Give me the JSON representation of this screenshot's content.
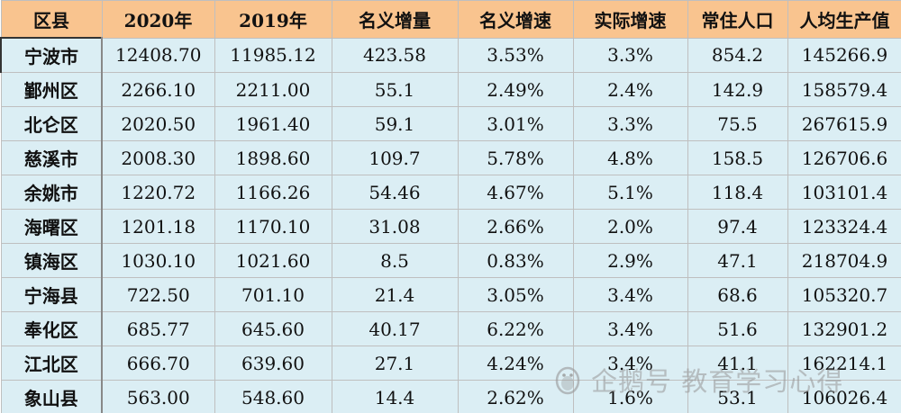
{
  "table": {
    "headers": [
      "区县",
      "2020年",
      "2019年",
      "名义增量",
      "名义增速",
      "实际增速",
      "常住人口",
      "人均生产值"
    ],
    "rows": [
      [
        "宁波市",
        "12408.70",
        "11985.12",
        "423.58",
        "3.53%",
        "3.3%",
        "854.2",
        "145266.9"
      ],
      [
        "鄞州区",
        "2266.10",
        "2211.00",
        "55.1",
        "2.49%",
        "2.4%",
        "142.9",
        "158579.4"
      ],
      [
        "北仑区",
        "2020.50",
        "1961.40",
        "59.1",
        "3.01%",
        "3.3%",
        "75.5",
        "267615.9"
      ],
      [
        "慈溪市",
        "2008.30",
        "1898.60",
        "109.7",
        "5.78%",
        "4.8%",
        "158.5",
        "126706.6"
      ],
      [
        "余姚市",
        "1220.72",
        "1166.26",
        "54.46",
        "4.67%",
        "5.1%",
        "118.4",
        "103101.4"
      ],
      [
        "海曙区",
        "1201.18",
        "1170.10",
        "31.08",
        "2.66%",
        "2.0%",
        "97.4",
        "123324.4"
      ],
      [
        "镇海区",
        "1030.10",
        "1021.60",
        "8.5",
        "0.83%",
        "2.9%",
        "47.1",
        "218704.9"
      ],
      [
        "宁海县",
        "722.50",
        "701.10",
        "21.4",
        "3.05%",
        "3.4%",
        "68.6",
        "105320.7"
      ],
      [
        "奉化区",
        "685.77",
        "645.60",
        "40.17",
        "6.22%",
        "3.4%",
        "51.6",
        "132901.2"
      ],
      [
        "江北区",
        "666.70",
        "639.60",
        "27.1",
        "4.24%",
        "3.4%",
        "41.1",
        "162214.1"
      ],
      [
        "象山县",
        "563.00",
        "548.60",
        "14.4",
        "2.62%",
        "1.6%",
        "53.1",
        "106026.4"
      ]
    ]
  },
  "watermark": {
    "text": "企鹅号 教育学习心得",
    "icon": "penguin-logo-icon"
  },
  "colors": {
    "header_bg": "#f9c48f",
    "cell_bg": "#dbeef4"
  }
}
